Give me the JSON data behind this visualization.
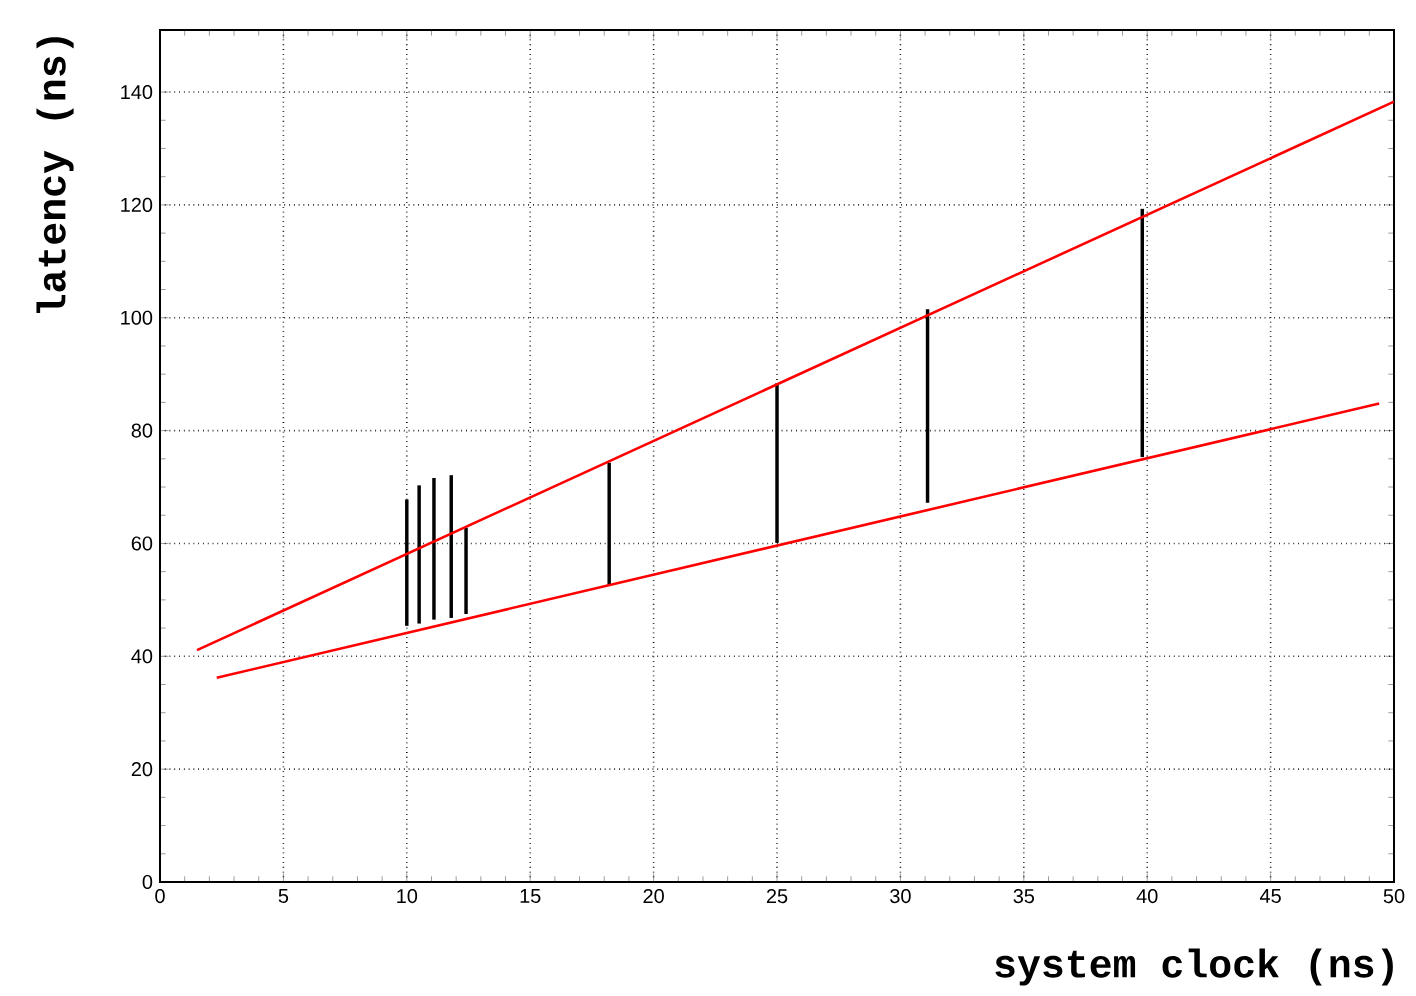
{
  "chart_data": {
    "type": "bar",
    "xlabel": "system clock (ns)",
    "ylabel": "latency (ns)",
    "xlim": [
      0,
      50
    ],
    "ylim": [
      0,
      151
    ],
    "xticks": [
      0,
      5,
      10,
      15,
      20,
      25,
      30,
      35,
      40,
      45,
      50
    ],
    "yticks": [
      0,
      20,
      40,
      60,
      80,
      100,
      120,
      140
    ],
    "grid": true,
    "series": [
      {
        "color": "#000000",
        "x": [
          10,
          10.5,
          11.1,
          11.8,
          12.4,
          18.2,
          25,
          31.1,
          39.8
        ],
        "base": [
          45.4,
          45.8,
          46.5,
          46.8,
          47.5,
          52.5,
          60.1,
          67.2,
          75.3
        ],
        "values": [
          22.4,
          24.5,
          25.1,
          25.3,
          15.3,
          21.8,
          28.3,
          34.3,
          44
        ]
      },
      {
        "type": "line",
        "color": "#ff0000",
        "x": [
          1.5,
          50
        ],
        "values": [
          41.1,
          138.3
        ]
      },
      {
        "type": "line",
        "color": "#ff0000",
        "x": [
          2.3,
          49.4
        ],
        "values": [
          36.2,
          84.8
        ]
      }
    ]
  }
}
